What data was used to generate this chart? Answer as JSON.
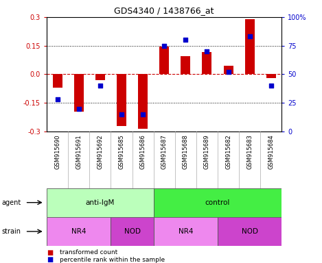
{
  "title": "GDS4340 / 1438766_at",
  "samples": [
    "GSM915690",
    "GSM915691",
    "GSM915692",
    "GSM915685",
    "GSM915686",
    "GSM915687",
    "GSM915688",
    "GSM915689",
    "GSM915682",
    "GSM915683",
    "GSM915684"
  ],
  "bar_values": [
    -0.07,
    -0.195,
    -0.03,
    -0.27,
    -0.285,
    0.145,
    0.095,
    0.115,
    0.045,
    0.29,
    -0.02
  ],
  "percentile_values": [
    28,
    20,
    40,
    15,
    15,
    75,
    80,
    70,
    52,
    83,
    40
  ],
  "ylim_left": [
    -0.3,
    0.3
  ],
  "ylim_right": [
    0,
    100
  ],
  "yticks_left": [
    -0.3,
    -0.15,
    0.0,
    0.15,
    0.3
  ],
  "yticks_right": [
    0,
    25,
    50,
    75,
    100
  ],
  "bar_color": "#cc0000",
  "dot_color": "#0000cc",
  "agent_groups": [
    {
      "label": "anti-IgM",
      "start": 0,
      "end": 5,
      "color": "#bbffbb"
    },
    {
      "label": "control",
      "start": 5,
      "end": 11,
      "color": "#44ee44"
    }
  ],
  "strain_groups": [
    {
      "label": "NR4",
      "start": 0,
      "end": 3,
      "color": "#ee88ee"
    },
    {
      "label": "NOD",
      "start": 3,
      "end": 5,
      "color": "#cc44cc"
    },
    {
      "label": "NR4",
      "start": 5,
      "end": 8,
      "color": "#ee88ee"
    },
    {
      "label": "NOD",
      "start": 8,
      "end": 11,
      "color": "#cc44cc"
    }
  ],
  "legend_bar_color": "#cc0000",
  "legend_dot_color": "#0000cc",
  "legend_bar_label": "transformed count",
  "legend_dot_label": "percentile rank within the sample",
  "bg_color": "#ffffff",
  "tick_color_left": "#cc0000",
  "tick_color_right": "#0000cc",
  "hline_color_zero": "#cc0000",
  "grid_color": "#000000",
  "bar_width": 0.45,
  "dot_size": 22,
  "sample_box_color": "#d8d8d8",
  "right_labels": [
    "0",
    "25",
    "50",
    "75",
    "100%"
  ]
}
